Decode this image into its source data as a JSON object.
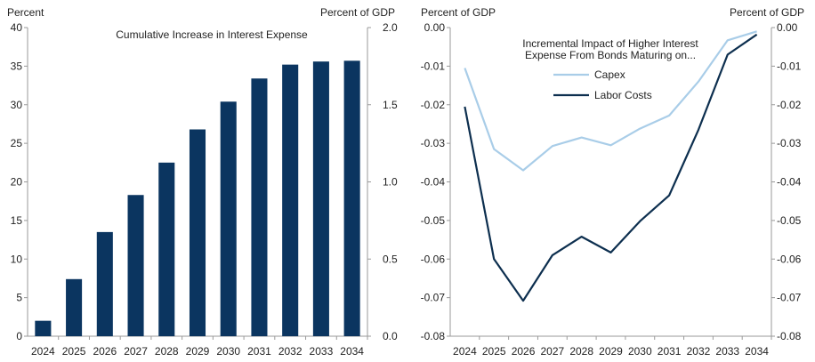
{
  "chart_data": [
    {
      "type": "bar",
      "title": "Cumulative Increase in Interest Expense",
      "ylabel_left": "Percent",
      "ylabel_right": "Percent of GDP",
      "categories": [
        "2024",
        "2025",
        "2026",
        "2027",
        "2028",
        "2029",
        "2030",
        "2031",
        "2032",
        "2033",
        "2034"
      ],
      "values": [
        2.0,
        7.4,
        13.5,
        18.3,
        22.5,
        26.8,
        30.4,
        33.4,
        35.2,
        35.6,
        35.7
      ],
      "ylim_left": [
        0,
        40
      ],
      "yticks_left": [
        0,
        5,
        10,
        15,
        20,
        25,
        30,
        35,
        40
      ],
      "ylim_right": [
        0,
        2
      ],
      "yticks_right": [
        "0.0",
        "0.5",
        "1.0",
        "1.5",
        "2.0"
      ],
      "bar_color": "#0b3560"
    },
    {
      "type": "line",
      "title_lines": [
        "Incremental Impact of Higher Interest",
        "Expense From Bonds Maturing on..."
      ],
      "ylabel_left": "Percent of GDP",
      "ylabel_right": "Percent of GDP",
      "categories": [
        "2024",
        "2025",
        "2026",
        "2027",
        "2028",
        "2029",
        "2030",
        "2031",
        "2032",
        "2033",
        "2034"
      ],
      "ylim": [
        -0.08,
        0
      ],
      "yticks": [
        "0.00",
        "-0.01",
        "-0.02",
        "-0.03",
        "-0.04",
        "-0.05",
        "-0.06",
        "-0.07",
        "-0.08"
      ],
      "series": [
        {
          "name": "Capex",
          "color": "#a9cde8",
          "values": [
            -0.0105,
            -0.0315,
            -0.037,
            -0.0307,
            -0.0285,
            -0.0305,
            -0.0262,
            -0.0228,
            -0.014,
            -0.0033,
            -0.001
          ]
        },
        {
          "name": "Labor Costs",
          "color": "#0d2f4f",
          "values": [
            -0.0205,
            -0.06,
            -0.0708,
            -0.059,
            -0.0542,
            -0.0583,
            -0.0502,
            -0.0435,
            -0.0265,
            -0.007,
            -0.0018
          ]
        }
      ]
    }
  ]
}
